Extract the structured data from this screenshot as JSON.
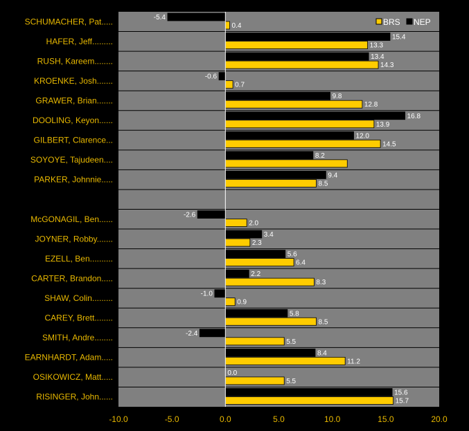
{
  "chart_data": {
    "type": "bar",
    "orientation": "horizontal",
    "categories": [
      "SCHUMACHER, Pat.....",
      "HAFER, Jeff.........",
      "RUSH, Kareem........",
      "KROENKE, Josh.......",
      "GRAWER, Brian.......",
      "DOOLING, Keyon......",
      "GILBERT, Clarence...",
      "SOYOYE, Tajudeen....",
      "PARKER, Johnnie.....",
      "",
      "McGONAGIL, Ben......",
      "JOYNER, Robby.......",
      "EZELL, Ben..........",
      "CARTER, Brandon.....",
      "SHAW, Colin.........",
      "CAREY, Brett........",
      "SMITH, Andre........",
      "EARNHARDT, Adam.....",
      "OSIKOWICZ, Matt.....",
      "RISINGER, John......"
    ],
    "series": [
      {
        "name": "NEP",
        "color": "#000000",
        "values": [
          -5.4,
          15.4,
          13.4,
          -0.6,
          9.8,
          16.8,
          12.0,
          8.2,
          9.4,
          null,
          -2.6,
          3.4,
          5.6,
          2.2,
          -1.0,
          5.8,
          -2.4,
          8.4,
          0.0,
          15.6
        ],
        "labels": [
          "-5.4",
          "15.4",
          "13.4",
          "-0.6",
          "9.8",
          "16.8",
          "12.0",
          "8.2",
          "9.4",
          "",
          "-2.6",
          "3.4",
          "5.6",
          "2.2",
          "-1.0",
          "5.8",
          "-2.4",
          "8.4",
          "0.0",
          "15.6"
        ]
      },
      {
        "name": "BRS",
        "color": "#ffcc00",
        "values": [
          0.4,
          13.3,
          14.3,
          0.7,
          12.8,
          13.9,
          14.5,
          11.4,
          8.5,
          null,
          2.0,
          2.3,
          6.4,
          8.3,
          0.9,
          8.5,
          5.5,
          11.2,
          5.5,
          15.7
        ],
        "labels": [
          "0.4",
          "13.3",
          "14.3",
          "0.7",
          "12.8",
          "13.9",
          "14.5",
          "",
          "8.5",
          "",
          "2.0",
          "2.3",
          "6.4",
          "8.3",
          "0.9",
          "8.5",
          "5.5",
          "11.2",
          "5.5",
          "15.7"
        ]
      }
    ],
    "xlim": [
      -10,
      20
    ],
    "xticks": [
      "-10.0",
      "-5.0",
      "0.0",
      "5.0",
      "10.0",
      "15.0",
      "20.0"
    ],
    "xtick_values": [
      -10,
      -5,
      0,
      5,
      10,
      15,
      20
    ],
    "legend": "top-right",
    "legend_entries": [
      "BRS",
      "NEP"
    ],
    "grid": true,
    "title": "",
    "xlabel": "",
    "ylabel": "",
    "colors": {
      "background": "#000000",
      "plot_area": "#808080",
      "grid": "#000000",
      "label": "#e8b800",
      "value_text": "#ffffff"
    }
  }
}
